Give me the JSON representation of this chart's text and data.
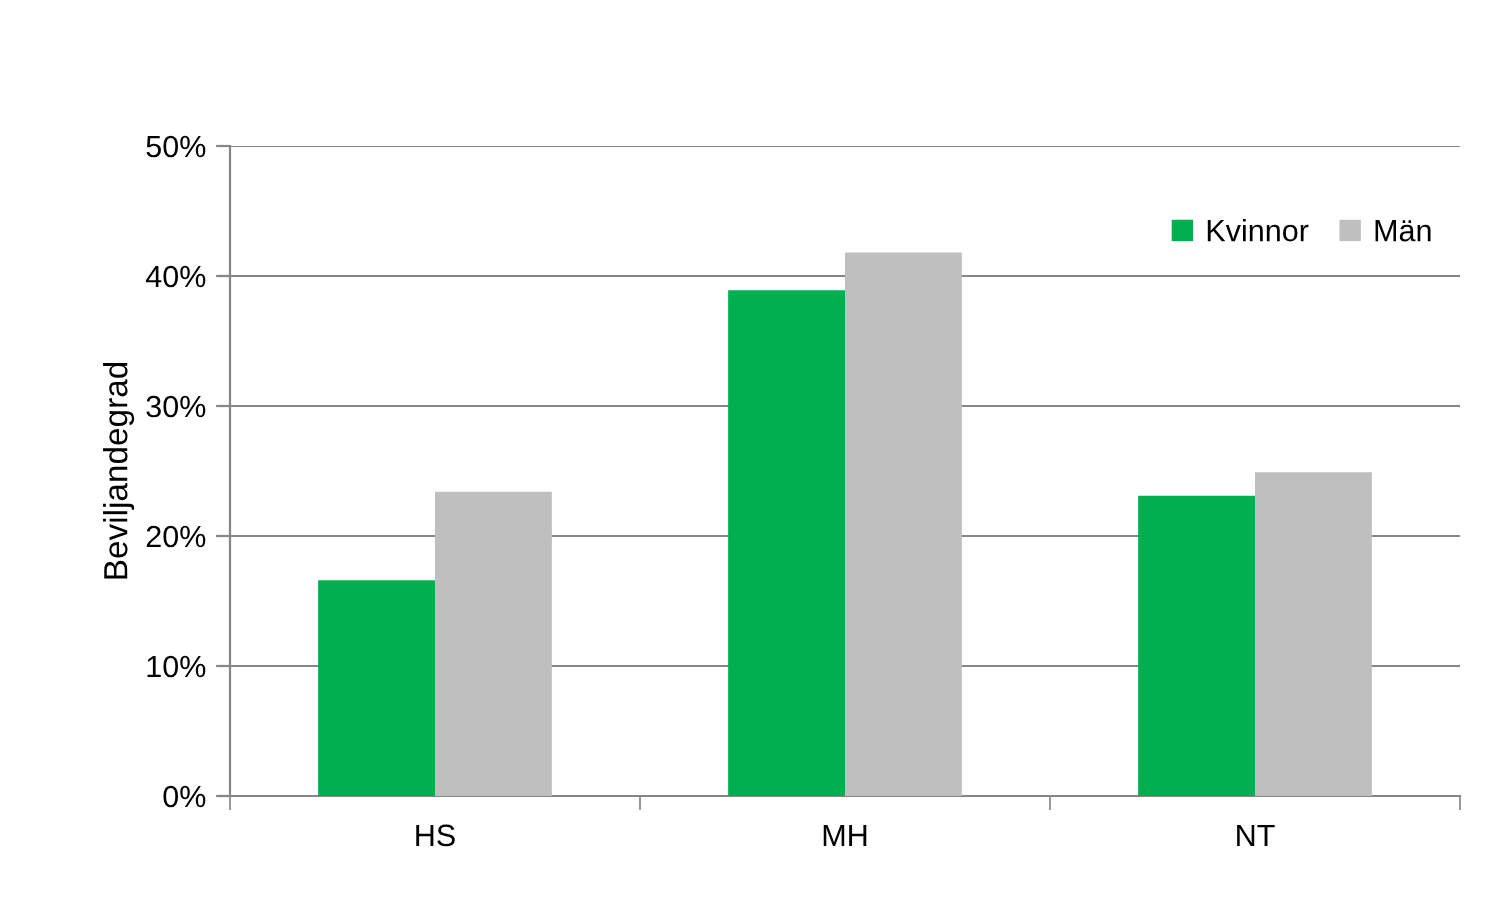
{
  "chart_data": {
    "type": "bar",
    "ylabel": "Beviljandegrad",
    "categories": [
      "HS",
      "MH",
      "NT"
    ],
    "series": [
      {
        "name": "Kvinnor",
        "color": "#00b050",
        "values": [
          16.6,
          38.9,
          23.1
        ]
      },
      {
        "name": "Män",
        "color": "#bfbfbf",
        "values": [
          23.4,
          41.8,
          24.9
        ]
      }
    ],
    "ylim": [
      0,
      50
    ],
    "yticks": [
      {
        "value": 0,
        "label": "0%"
      },
      {
        "value": 10,
        "label": "10%"
      },
      {
        "value": 20,
        "label": "20%"
      },
      {
        "value": 30,
        "label": "30%"
      },
      {
        "value": 40,
        "label": "40%"
      },
      {
        "value": 50,
        "label": "50%"
      }
    ],
    "grid": "y",
    "legend": "top right"
  }
}
